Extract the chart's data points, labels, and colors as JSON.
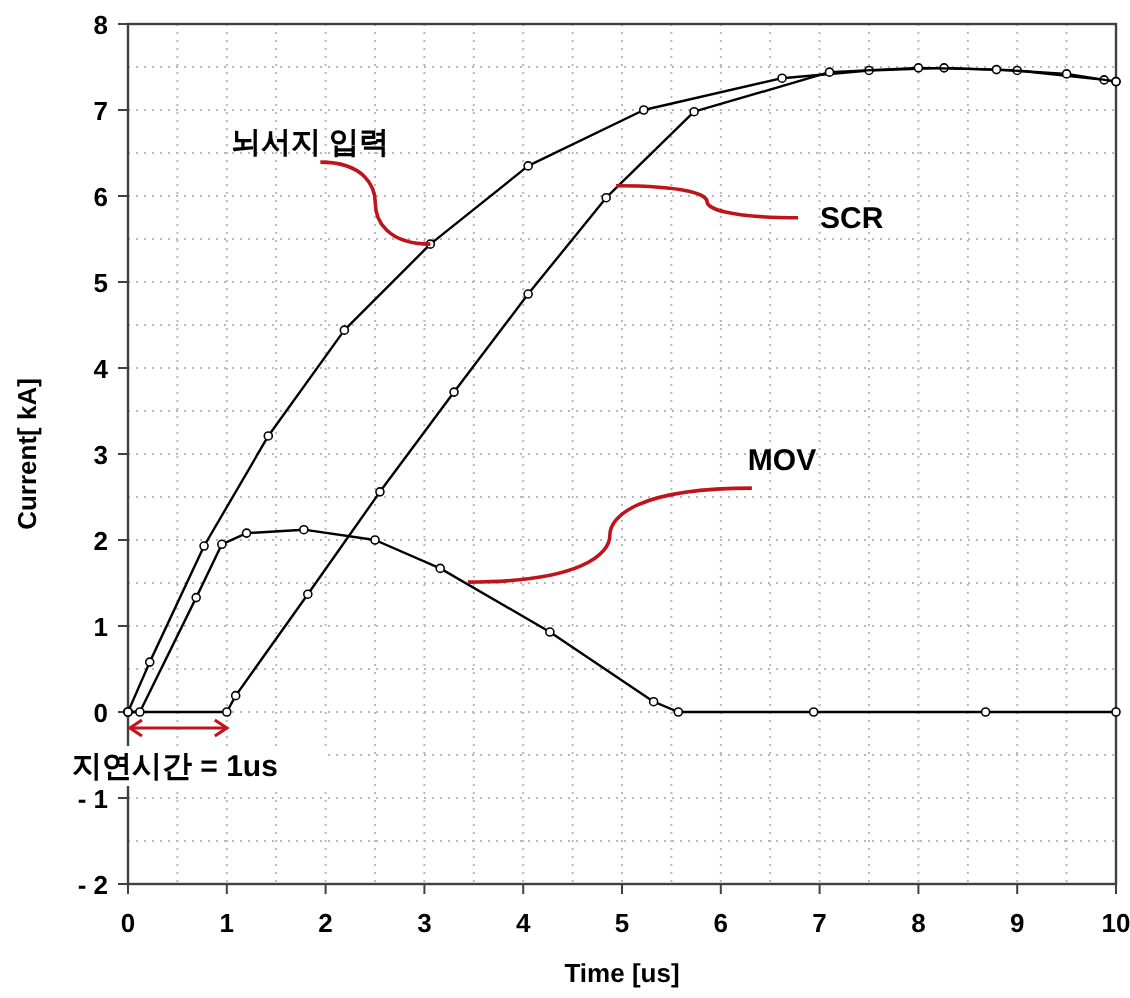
{
  "chart_data": {
    "type": "line",
    "xlabel": "Time [us]",
    "ylabel": "Current[ kA]",
    "xlim": [
      0,
      10
    ],
    "ylim": [
      -2,
      8
    ],
    "xticks": [
      0,
      1,
      2,
      3,
      4,
      5,
      6,
      7,
      8,
      9,
      10
    ],
    "yticks": [
      {
        "value": -2,
        "label": "- 2"
      },
      {
        "value": -1,
        "label": "- 1"
      },
      0,
      1,
      2,
      3,
      4,
      5,
      6,
      7,
      8
    ],
    "grid": true,
    "marker": "circle",
    "line_style": "solid",
    "series": [
      {
        "color": "#000000",
        "x": [
          0,
          0.22,
          0.77,
          1.42,
          2.19,
          3.06,
          4.05,
          5.22,
          6.62,
          7.5,
          8.26,
          9.0,
          9.88,
          10
        ],
        "values": [
          0,
          0.58,
          1.93,
          3.21,
          4.44,
          5.44,
          6.35,
          7.0,
          7.37,
          7.46,
          7.49,
          7.46,
          7.35,
          7.33
        ]
      },
      {
        "color": "#000000",
        "x": [
          0,
          1.0,
          1.09,
          1.82,
          2.55,
          3.3,
          4.05,
          4.84,
          5.73,
          7.1,
          8.0,
          8.79,
          9.5,
          10
        ],
        "values": [
          0,
          0,
          0.19,
          1.37,
          2.56,
          3.72,
          4.86,
          5.98,
          6.98,
          7.44,
          7.49,
          7.47,
          7.42,
          7.33
        ]
      },
      {
        "color": "#000000",
        "x": [
          0,
          0.12,
          0.69,
          0.95,
          1.2,
          1.78,
          2.5,
          3.16,
          4.27,
          5.32,
          5.57,
          6.94,
          8.68,
          10
        ],
        "values": [
          0,
          0,
          1.33,
          1.95,
          2.08,
          2.12,
          2.0,
          1.67,
          0.93,
          0.12,
          0,
          0,
          0,
          0
        ]
      }
    ],
    "annotations": [
      {
        "text": "뇌서지 입력",
        "x": 3.06,
        "y": 5.44
      },
      {
        "text": "SCR",
        "x": 4.94,
        "y": 6.12
      },
      {
        "text": "MOV",
        "x": 3.44,
        "y": 1.51
      },
      {
        "text": "지연시간 = 1us",
        "x": 1,
        "y": 0
      }
    ]
  }
}
